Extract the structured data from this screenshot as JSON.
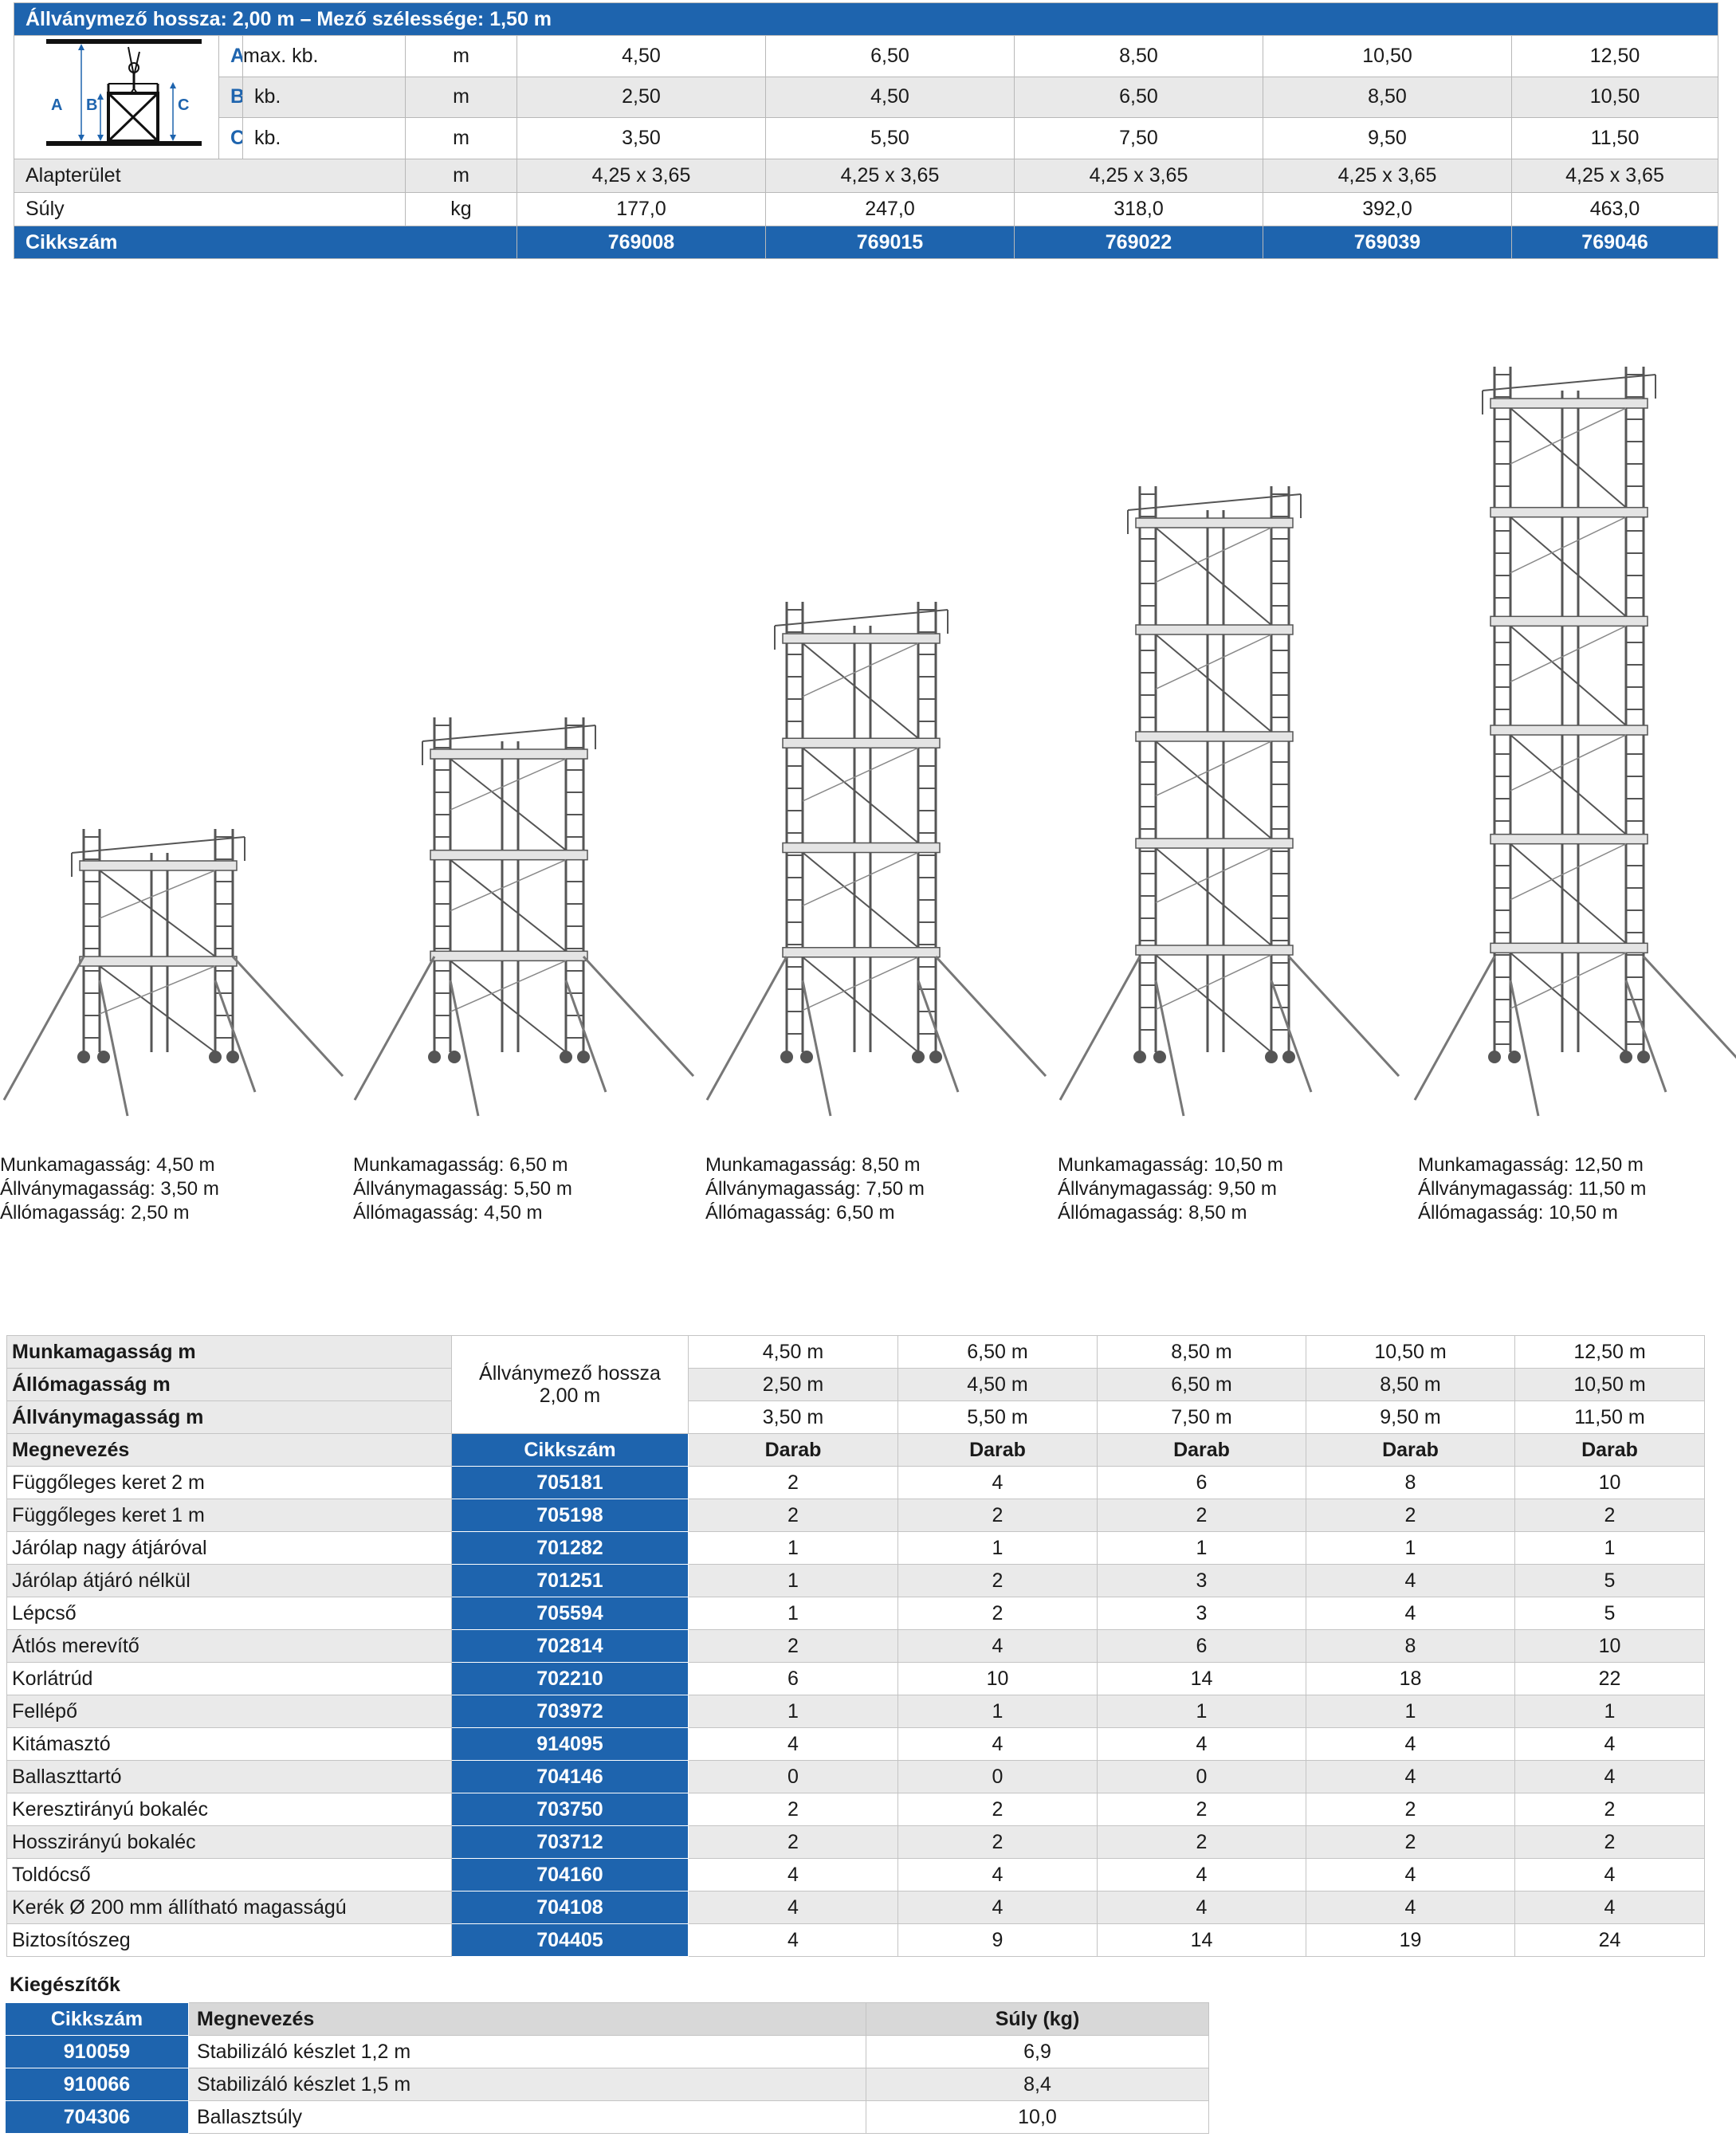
{
  "spec": {
    "title": "Állványmező hossza: 2,00 m – Mező szélessége: 1,50 m",
    "diagram_labels": [
      "A",
      "B",
      "C"
    ],
    "dim_rows": [
      {
        "letter": "A",
        "qual": "max. kb.",
        "unit": "m",
        "values": [
          "4,50",
          "6,50",
          "8,50",
          "10,50",
          "12,50"
        ]
      },
      {
        "letter": "B",
        "qual": "kb.",
        "unit": "m",
        "values": [
          "2,50",
          "4,50",
          "6,50",
          "8,50",
          "10,50"
        ]
      },
      {
        "letter": "C",
        "qual": "kb.",
        "unit": "m",
        "values": [
          "3,50",
          "5,50",
          "7,50",
          "9,50",
          "11,50"
        ]
      }
    ],
    "area": {
      "label": "Alapterület",
      "unit": "m",
      "values": [
        "4,25 x 3,65",
        "4,25 x 3,65",
        "4,25 x 3,65",
        "4,25 x 3,65",
        "4,25 x 3,65"
      ]
    },
    "weight": {
      "label": "Súly",
      "unit": "kg",
      "values": [
        "177,0",
        "247,0",
        "318,0",
        "392,0",
        "463,0"
      ]
    },
    "article": {
      "label": "Cikkszám",
      "values": [
        "769008",
        "769015",
        "769022",
        "769039",
        "769046"
      ]
    }
  },
  "captions": [
    {
      "work": "Munkamagasság: 4,50 m",
      "scaffold": "Állványmagasság: 3,50 m",
      "stand": "Állómagasság: 2,50 m"
    },
    {
      "work": "Munkamagasság: 6,50 m",
      "scaffold": "Állványmagasság: 5,50 m",
      "stand": "Állómagasság: 4,50 m"
    },
    {
      "work": "Munkamagasság: 8,50 m",
      "scaffold": "Állványmagasság: 7,50 m",
      "stand": "Állómagasság: 6,50 m"
    },
    {
      "work": "Munkamagasság: 10,50 m",
      "scaffold": "Állványmagasság: 9,50 m",
      "stand": "Állómagasság: 8,50 m"
    },
    {
      "work": "Munkamagasság: 12,50 m",
      "scaffold": "Állványmagasság: 11,50 m",
      "stand": "Állómagasság: 10,50 m"
    }
  ],
  "parts": {
    "header_rows": [
      {
        "label": "Munkamagasság m",
        "values": [
          "4,50 m",
          "6,50 m",
          "8,50 m",
          "10,50 m",
          "12,50 m"
        ]
      },
      {
        "label": "Állómagasság m",
        "values": [
          "2,50 m",
          "4,50 m",
          "6,50 m",
          "8,50 m",
          "10,50 m"
        ]
      },
      {
        "label": "Állványmagasság m",
        "values": [
          "3,50 m",
          "5,50 m",
          "7,50 m",
          "9,50 m",
          "11,50 m"
        ]
      }
    ],
    "field_length_line1": "Állványmező hossza",
    "field_length_line2": "2,00 m",
    "col_name": "Megnevezés",
    "col_code": "Cikkszám",
    "col_qty": "Darab",
    "rows": [
      {
        "name": "Függőleges keret 2 m",
        "code": "705181",
        "qty": [
          "2",
          "4",
          "6",
          "8",
          "10"
        ]
      },
      {
        "name": "Függőleges keret 1 m",
        "code": "705198",
        "qty": [
          "2",
          "2",
          "2",
          "2",
          "2"
        ]
      },
      {
        "name": "Járólap nagy átjáróval",
        "code": "701282",
        "qty": [
          "1",
          "1",
          "1",
          "1",
          "1"
        ]
      },
      {
        "name": "Járólap átjáró nélkül",
        "code": "701251",
        "qty": [
          "1",
          "2",
          "3",
          "4",
          "5"
        ]
      },
      {
        "name": "Lépcső",
        "code": "705594",
        "qty": [
          "1",
          "2",
          "3",
          "4",
          "5"
        ]
      },
      {
        "name": "Átlós merevítő",
        "code": "702814",
        "qty": [
          "2",
          "4",
          "6",
          "8",
          "10"
        ]
      },
      {
        "name": "Korlátrúd",
        "code": "702210",
        "qty": [
          "6",
          "10",
          "14",
          "18",
          "22"
        ]
      },
      {
        "name": "Fellépő",
        "code": "703972",
        "qty": [
          "1",
          "1",
          "1",
          "1",
          "1"
        ]
      },
      {
        "name": "Kitámasztó",
        "code": "914095",
        "qty": [
          "4",
          "4",
          "4",
          "4",
          "4"
        ]
      },
      {
        "name": "Ballaszttartó",
        "code": "704146",
        "qty": [
          "0",
          "0",
          "0",
          "4",
          "4"
        ]
      },
      {
        "name": "Keresztirányú bokaléc",
        "code": "703750",
        "qty": [
          "2",
          "2",
          "2",
          "2",
          "2"
        ]
      },
      {
        "name": "Hosszirányú bokaléc",
        "code": "703712",
        "qty": [
          "2",
          "2",
          "2",
          "2",
          "2"
        ]
      },
      {
        "name": "Toldócső",
        "code": "704160",
        "qty": [
          "4",
          "4",
          "4",
          "4",
          "4"
        ]
      },
      {
        "name": "Kerék Ø 200 mm állítható magasságú",
        "code": "704108",
        "qty": [
          "4",
          "4",
          "4",
          "4",
          "4"
        ]
      },
      {
        "name": "Biztosítószeg",
        "code": "704405",
        "qty": [
          "4",
          "9",
          "14",
          "19",
          "24"
        ]
      }
    ]
  },
  "accessories": {
    "title": "Kiegészítők",
    "headers": {
      "code": "Cikkszám",
      "name": "Megnevezés",
      "weight": "Súly (kg)"
    },
    "rows": [
      {
        "code": "910059",
        "name": "Stabilizáló készlet 1,2 m",
        "weight": "6,9"
      },
      {
        "code": "910066",
        "name": "Stabilizáló készlet 1,5 m",
        "weight": "8,4"
      },
      {
        "code": "704306",
        "name": "Ballasztsúly",
        "weight": "10,0"
      }
    ]
  },
  "colors": {
    "accent_blue": "#1e64ae",
    "row_grey": "#eaeaea"
  },
  "icons": [
    "scaffold-diagram-icon",
    "scaffold-tower-image"
  ]
}
